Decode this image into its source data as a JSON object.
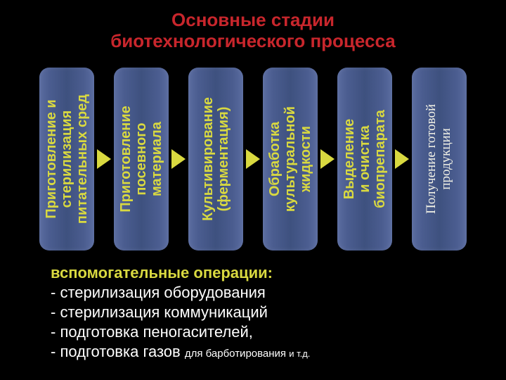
{
  "colors": {
    "background": "#000000",
    "title": "#c8262c",
    "stage_text": "#d9d940",
    "last_stage_text": "#f2f2e6",
    "arrow": "#d9d940",
    "aux_heading": "#d9d940",
    "aux_text": "#ffffff"
  },
  "fonts": {
    "title_size": 26,
    "stage_size": 20,
    "last_stage_size": 19,
    "last_stage_family": "\"Times New Roman\", serif",
    "aux_size": 22
  },
  "title": {
    "line1": "Основные стадии",
    "line2": "биотехнологического процесса"
  },
  "stages": [
    {
      "line1": "Приготовление и",
      "line2": "стерилизация",
      "line3": "питательных сред"
    },
    {
      "line1": "Приготовление",
      "line2": "посевного",
      "line3": "материала"
    },
    {
      "line1": "Культивирование",
      "line2": "(ферментация)",
      "line3": ""
    },
    {
      "line1": "Обработка",
      "line2": "культуральной",
      "line3": "жидкости"
    },
    {
      "line1": "Выделение",
      "line2": "и очистка",
      "line3": "биопрепарата"
    },
    {
      "line1": "Получение готовой",
      "line2": "продукции",
      "line3": ""
    }
  ],
  "aux": {
    "heading": "вспомогательные операции:",
    "items": [
      "- стерилизация оборудования",
      "- стерилизация коммуникаций",
      "- подготовка пеногасителей,"
    ],
    "last_prefix": "- подготовка газов ",
    "last_mid": "для барботирования  ",
    "last_tail": "и т.д."
  }
}
